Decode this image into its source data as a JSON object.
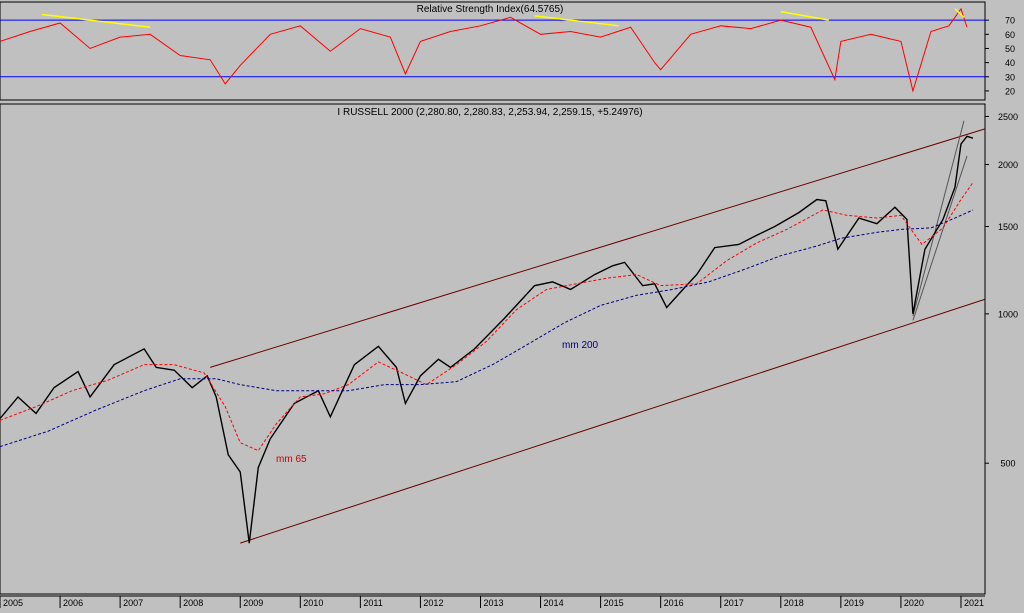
{
  "chart_data": [
    {
      "type": "line",
      "title": "Relative Strength Index(64.5765)",
      "ylim": [
        15,
        80
      ],
      "yticks": [
        20,
        30,
        40,
        50,
        60,
        70
      ],
      "reference_lines": [
        70,
        30
      ],
      "colors": {
        "series": "#ff0000",
        "reference": "#0000ff",
        "trend": "#ffff00"
      },
      "x": [
        2005.0,
        2005.5,
        2006.0,
        2006.5,
        2007.0,
        2007.5,
        2008.0,
        2008.5,
        2008.75,
        2009.0,
        2009.5,
        2010.0,
        2010.5,
        2011.0,
        2011.5,
        2011.75,
        2012.0,
        2012.5,
        2013.0,
        2013.5,
        2014.0,
        2014.5,
        2015.0,
        2015.5,
        2015.9,
        2016.0,
        2016.5,
        2017.0,
        2017.5,
        2018.0,
        2018.5,
        2018.9,
        2019.0,
        2019.5,
        2020.0,
        2020.2,
        2020.5,
        2020.8,
        2021.0,
        2021.1
      ],
      "values": [
        55,
        62,
        68,
        50,
        58,
        60,
        45,
        42,
        25,
        38,
        60,
        66,
        48,
        64,
        58,
        32,
        55,
        62,
        66,
        72,
        60,
        62,
        58,
        65,
        40,
        35,
        60,
        66,
        64,
        70,
        65,
        28,
        55,
        60,
        55,
        20,
        62,
        66,
        78,
        65
      ],
      "divergence_lines": [
        {
          "x": [
            2005.7,
            2007.5
          ],
          "y": [
            74,
            65
          ]
        },
        {
          "x": [
            2013.9,
            2015.3
          ],
          "y": [
            73,
            66
          ]
        },
        {
          "x": [
            2018.0,
            2018.8
          ],
          "y": [
            76,
            70
          ]
        },
        {
          "x": [
            2020.9,
            2021.05
          ],
          "y": [
            78,
            72
          ]
        }
      ]
    },
    {
      "type": "line",
      "title": "I RUSSELL 2000 (2,280.80, 2,280.83, 2,253.94, 2,259.15, +5.24976)",
      "scale": "log",
      "ylim": [
        275,
        2600
      ],
      "yticks": [
        500,
        1000,
        1500,
        2000,
        2500
      ],
      "xlim": [
        2005.0,
        2021.4
      ],
      "xticks": [
        "2005",
        "2006",
        "2007",
        "2008",
        "2009",
        "2010",
        "2011",
        "2012",
        "2013",
        "2014",
        "2015",
        "2016",
        "2017",
        "2018",
        "2019",
        "2020",
        "2021"
      ],
      "colors": {
        "price": "#000000",
        "mm65": "#ff0000",
        "mm200": "#000080",
        "channel": "#660000",
        "trend": "#555555"
      },
      "series": [
        {
          "x": [
            2005.0,
            2005.3,
            2005.6,
            2005.9,
            2006.3,
            2006.5,
            2006.9,
            2007.4,
            2007.6,
            2007.9,
            2008.2,
            2008.45,
            2008.6,
            2008.8,
            2009.0,
            2009.15,
            2009.3,
            2009.5,
            2009.9,
            2010.3,
            2010.5,
            2010.9,
            2011.3,
            2011.6,
            2011.75,
            2012.0,
            2012.3,
            2012.5,
            2012.9,
            2013.4,
            2013.9,
            2014.2,
            2014.5,
            2014.9,
            2015.2,
            2015.4,
            2015.7,
            2015.9,
            2016.1,
            2016.4,
            2016.6,
            2016.9,
            2017.3,
            2017.6,
            2017.9,
            2018.3,
            2018.6,
            2018.75,
            2018.95,
            2019.3,
            2019.6,
            2019.9,
            2020.1,
            2020.2,
            2020.4,
            2020.7,
            2020.9,
            2021.0,
            2021.1,
            2021.2
          ],
          "values": [
            615,
            680,
            630,
            710,
            765,
            680,
            790,
            850,
            780,
            770,
            710,
            750,
            680,
            520,
            480,
            345,
            490,
            560,
            660,
            700,
            620,
            790,
            860,
            780,
            660,
            750,
            810,
            780,
            850,
            980,
            1140,
            1160,
            1120,
            1200,
            1250,
            1270,
            1140,
            1150,
            1030,
            1130,
            1200,
            1360,
            1380,
            1440,
            1500,
            1600,
            1700,
            1690,
            1350,
            1560,
            1520,
            1640,
            1550,
            1000,
            1350,
            1550,
            1800,
            2200,
            2280,
            2260
          ]
        },
        {
          "name": "mm 65",
          "x": [
            2005.0,
            2005.6,
            2006.2,
            2006.8,
            2007.4,
            2007.9,
            2008.4,
            2008.75,
            2009.0,
            2009.3,
            2009.6,
            2010.0,
            2010.4,
            2010.8,
            2011.3,
            2011.7,
            2012.1,
            2012.6,
            2013.1,
            2013.6,
            2014.1,
            2014.6,
            2015.1,
            2015.6,
            2016.0,
            2016.6,
            2017.1,
            2017.6,
            2018.1,
            2018.7,
            2019.1,
            2019.6,
            2020.0,
            2020.35,
            2020.7,
            2021.0,
            2021.2
          ],
          "values": [
            610,
            650,
            700,
            735,
            790,
            790,
            760,
            650,
            550,
            530,
            600,
            680,
            690,
            720,
            800,
            760,
            720,
            790,
            880,
            1020,
            1120,
            1150,
            1180,
            1200,
            1140,
            1150,
            1280,
            1390,
            1480,
            1620,
            1580,
            1560,
            1580,
            1380,
            1490,
            1700,
            1840
          ]
        },
        {
          "name": "mm 200",
          "x": [
            2005.0,
            2005.8,
            2006.6,
            2007.4,
            2008.0,
            2008.6,
            2009.0,
            2009.6,
            2010.2,
            2010.8,
            2011.4,
            2012.0,
            2012.6,
            2013.2,
            2013.8,
            2014.4,
            2015.0,
            2015.6,
            2016.2,
            2016.8,
            2017.4,
            2018.0,
            2018.6,
            2019.0,
            2019.6,
            2020.0,
            2020.5,
            2020.9,
            2021.2
          ],
          "values": [
            540,
            580,
            640,
            700,
            740,
            740,
            720,
            700,
            700,
            700,
            720,
            720,
            730,
            790,
            870,
            960,
            1040,
            1090,
            1120,
            1160,
            1230,
            1310,
            1370,
            1420,
            1460,
            1480,
            1490,
            1560,
            1620
          ]
        }
      ],
      "annotations": [
        "mm 200",
        "mm 65"
      ],
      "channel_lines": [
        {
          "x": [
            2008.5,
            2021.4
          ],
          "y": [
            780,
            2360
          ]
        },
        {
          "x": [
            2009.0,
            2021.4
          ],
          "y": [
            345,
            1070
          ]
        }
      ],
      "trend_lines": [
        {
          "x": [
            2020.2,
            2021.05
          ],
          "y": [
            990,
            2450
          ]
        },
        {
          "x": [
            2020.2,
            2021.1
          ],
          "y": [
            970,
            2080
          ]
        }
      ]
    }
  ]
}
